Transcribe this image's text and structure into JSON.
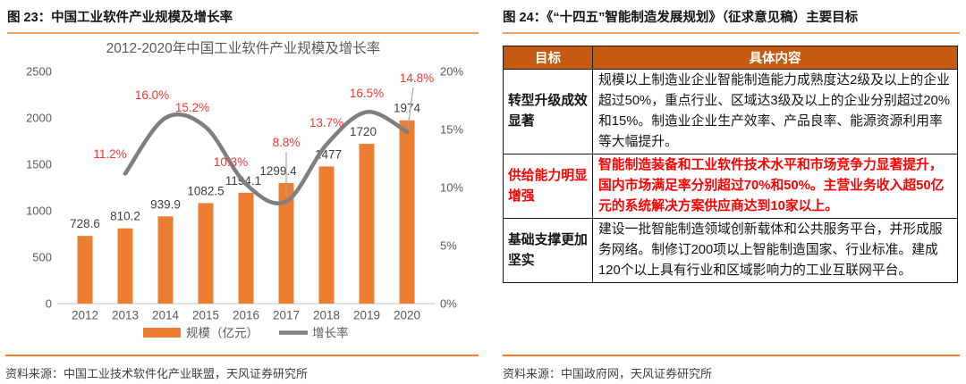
{
  "colors": {
    "bar": "#ED7D31",
    "line": "#7F7F7F",
    "red": "#FB3333",
    "table_header_bg": "#C55A11",
    "highlight_red": "#FF0000",
    "rule_orange": "#ED7D31",
    "caption_underline": "#F2A264",
    "axis_text": "#595959",
    "value_text": "#3F3F3F"
  },
  "left_figure": {
    "caption": "图 23：中国工业软件产业规模及增长率",
    "source": "资料来源：中国工业技术软件化产业联盟，天风证券研究所",
    "chart_data": {
      "type": "bar+line",
      "title": "2012-2020年中国工业软件产业规模及增长率",
      "categories": [
        "2012",
        "2013",
        "2014",
        "2015",
        "2016",
        "2017",
        "2018",
        "2019",
        "2020"
      ],
      "series": [
        {
          "name": "规模（亿元）",
          "type": "bar",
          "values": [
            728.6,
            810.2,
            939.9,
            1082.5,
            1194.1,
            1299.4,
            1477,
            1720,
            1974
          ]
        },
        {
          "name": "增长率",
          "type": "line",
          "starts_at": "2013",
          "values_percent": [
            11.2,
            16.0,
            15.2,
            10.3,
            8.8,
            13.7,
            16.5,
            14.8
          ]
        }
      ],
      "left_axis": {
        "min": 0,
        "max": 2500,
        "step": 500
      },
      "right_axis": {
        "min": 0,
        "max": 20,
        "step": 5,
        "suffix": "%"
      },
      "legend_position": "bottom",
      "grid": false
    }
  },
  "right_figure": {
    "caption": "图 24：《“十四五”智能制造发展规划》（征求意见稿）主要目标",
    "source": "资料来源：中国政府网，天风证券研究所",
    "table": {
      "headers": [
        "目标",
        "具体内容"
      ],
      "rows": [
        {
          "goal": "转型升级成效显著",
          "content": "规模以上制造业企业智能制造能力成熟度达2级及以上的企业超过50%，重点行业、区域达3级及以上的企业分别超过20%和15%。制造业企业生产效率、产品良率、能源资源利用率等大幅提升。",
          "highlight": false
        },
        {
          "goal": "供给能力明显增强",
          "content": "智能制造装备和工业软件技术水平和市场竞争力显著提升，国内市场满足率分别超过70%和50%。主营业务收入超50亿元的系统解决方案供应商达到10家以上。",
          "highlight": true
        },
        {
          "goal": "基础支撑更加坚实",
          "content": "建设一批智能制造领域创新载体和公共服务平台，并形成服务网络。制修订200项以上智能制造国家、行业标准。建成120个以上具有行业和区域影响力的工业互联网平台。",
          "highlight": false
        }
      ]
    }
  }
}
